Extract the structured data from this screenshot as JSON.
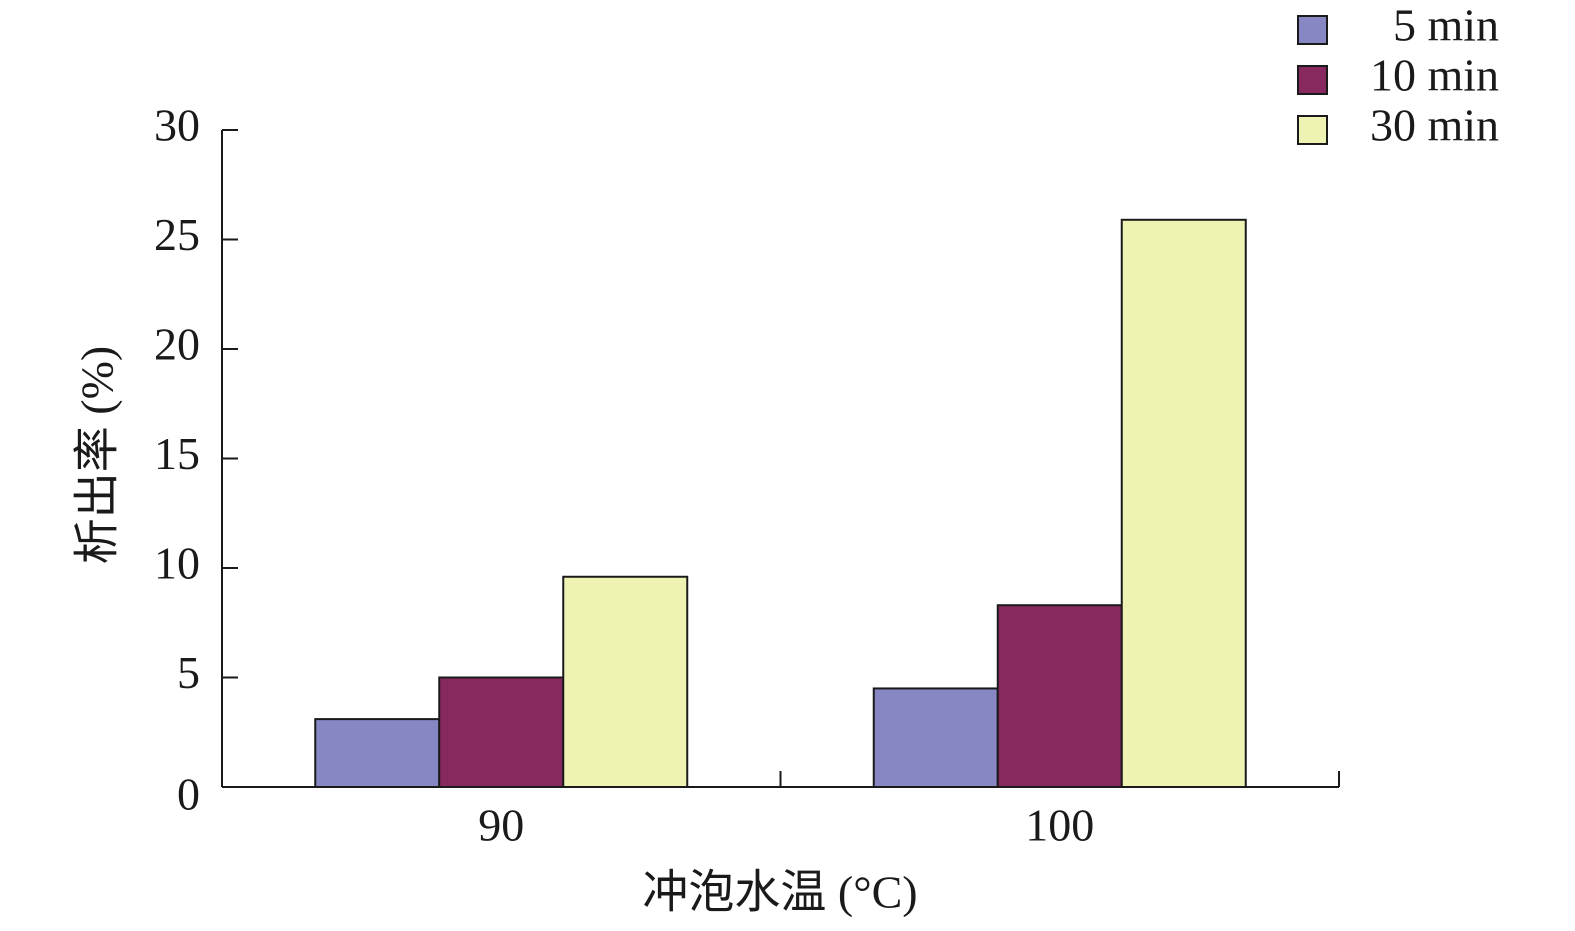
{
  "chart_data": {
    "type": "bar",
    "x_label": "冲泡水温 (°C)",
    "y_label": "析出率 (%)",
    "categories": [
      "90",
      "100"
    ],
    "series": [
      {
        "name": "5 min",
        "color": "#8787c4",
        "values": [
          3.1,
          4.5
        ]
      },
      {
        "name": "10 min",
        "color": "#87295f",
        "values": [
          5.0,
          8.3
        ]
      },
      {
        "name": "30 min",
        "color": "#eef3b4",
        "values": [
          9.6,
          25.9
        ]
      }
    ],
    "ylim": [
      0,
      30
    ],
    "yticks": [
      0,
      5,
      10,
      15,
      20,
      25,
      30
    ],
    "grid": false,
    "legend": "upper right"
  }
}
